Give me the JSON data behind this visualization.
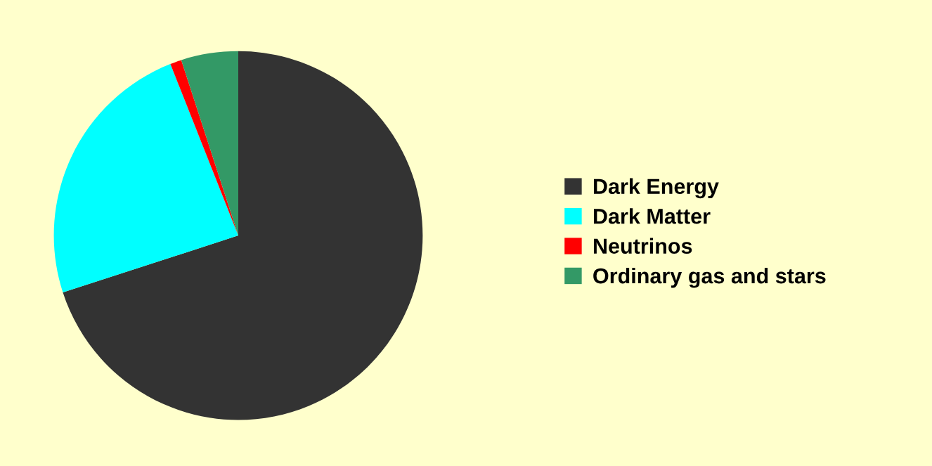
{
  "chart_data": {
    "type": "pie",
    "categories": [
      "Dark Energy",
      "Dark Matter",
      "Neutrinos",
      "Ordinary gas and stars"
    ],
    "values": [
      70,
      24,
      1,
      5
    ],
    "colors": [
      "#333333",
      "#00ffff",
      "#ff0000",
      "#339966"
    ],
    "legend": "right"
  }
}
